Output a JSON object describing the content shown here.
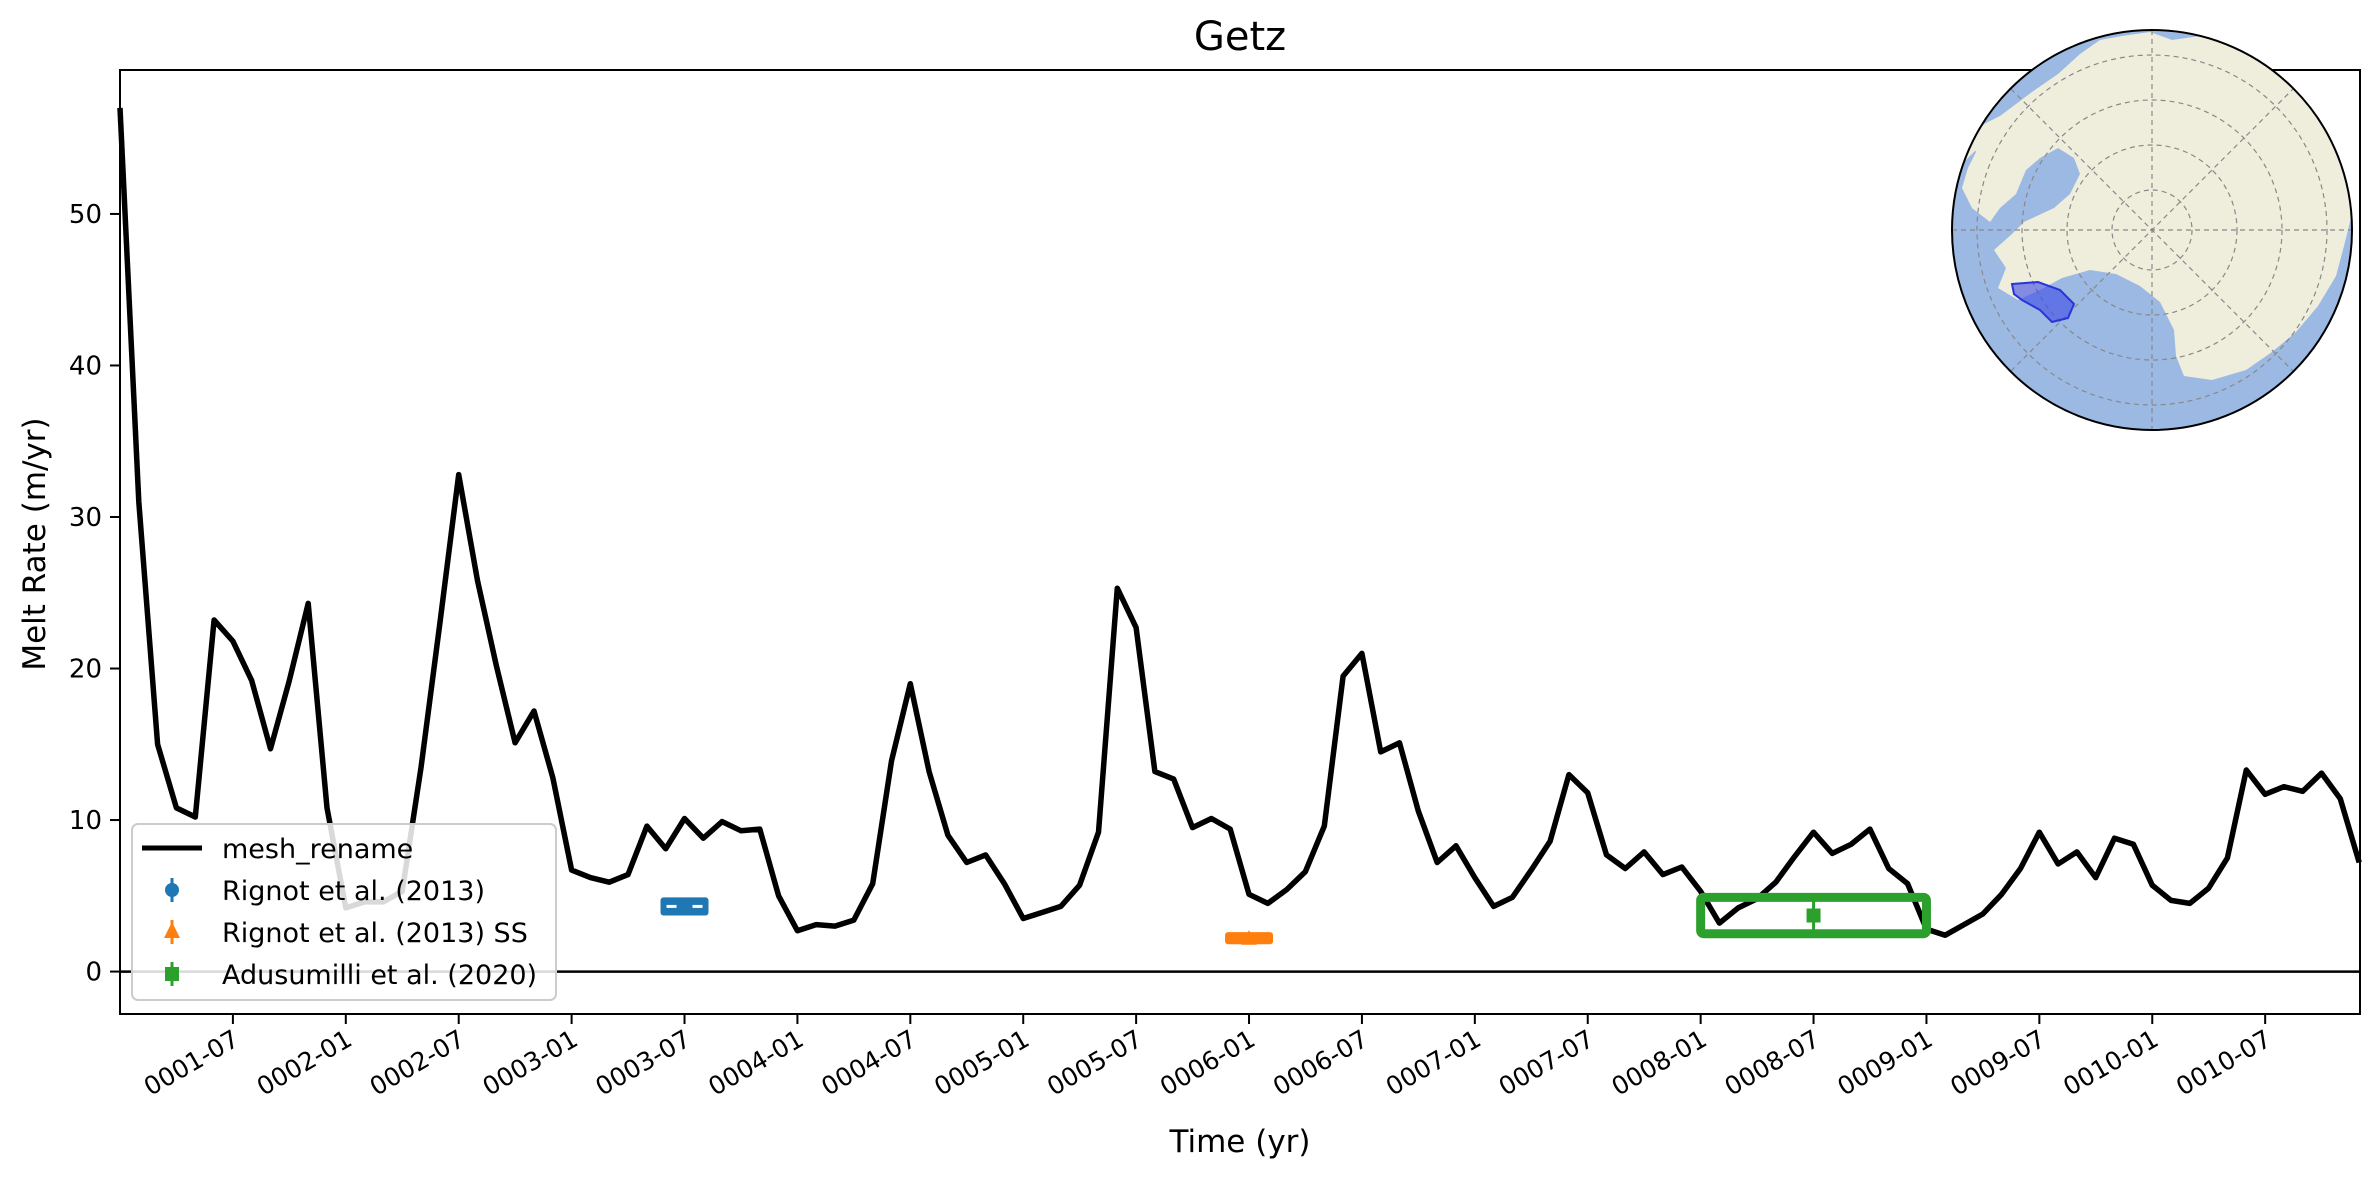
{
  "chart_data": {
    "type": "line",
    "title": "Getz",
    "xlabel": "Time (yr)",
    "ylabel": "Melt Rate (m/yr)",
    "xlim": [
      1.0,
      10.92
    ],
    "ylim": [
      -2.8,
      59.5
    ],
    "yticks": [
      0,
      10,
      20,
      30,
      40,
      50
    ],
    "xticks": [
      {
        "x": 1.5,
        "label": "0001-07"
      },
      {
        "x": 2.0,
        "label": "0002-01"
      },
      {
        "x": 2.5,
        "label": "0002-07"
      },
      {
        "x": 3.0,
        "label": "0003-01"
      },
      {
        "x": 3.5,
        "label": "0003-07"
      },
      {
        "x": 4.0,
        "label": "0004-01"
      },
      {
        "x": 4.5,
        "label": "0004-07"
      },
      {
        "x": 5.0,
        "label": "0005-01"
      },
      {
        "x": 5.5,
        "label": "0005-07"
      },
      {
        "x": 6.0,
        "label": "0006-01"
      },
      {
        "x": 6.5,
        "label": "0006-07"
      },
      {
        "x": 7.0,
        "label": "0007-01"
      },
      {
        "x": 7.5,
        "label": "0007-07"
      },
      {
        "x": 8.0,
        "label": "0008-01"
      },
      {
        "x": 8.5,
        "label": "0008-07"
      },
      {
        "x": 9.0,
        "label": "0009-01"
      },
      {
        "x": 9.5,
        "label": "0009-07"
      },
      {
        "x": 10.0,
        "label": "0010-01"
      },
      {
        "x": 10.5,
        "label": "0010-07"
      }
    ],
    "series": [
      {
        "name": "mesh_rename",
        "color": "#000000",
        "x_start": 1.0,
        "x_step": 0.08333,
        "values": [
          57,
          31,
          15,
          10.8,
          10.2,
          23.2,
          21.8,
          19.2,
          14.7,
          19.2,
          24.3,
          10.8,
          4.2,
          4.6,
          4.6,
          5.3,
          13.5,
          23.0,
          32.8,
          25.8,
          20.2,
          15.1,
          17.2,
          12.8,
          6.7,
          6.2,
          5.9,
          6.4,
          9.6,
          8.1,
          10.1,
          8.8,
          9.9,
          9.3,
          9.4,
          5.0,
          2.7,
          3.1,
          3.0,
          3.4,
          5.8,
          13.9,
          19.0,
          13.2,
          9.0,
          7.2,
          7.7,
          5.8,
          3.5,
          3.9,
          4.3,
          5.7,
          9.2,
          25.3,
          22.7,
          13.2,
          12.7,
          9.5,
          10.1,
          9.4,
          5.1,
          4.5,
          5.4,
          6.6,
          9.6,
          19.5,
          21.0,
          14.5,
          15.1,
          10.6,
          7.2,
          8.3,
          6.2,
          4.3,
          4.9,
          6.7,
          8.6,
          13.0,
          11.8,
          7.7,
          6.8,
          7.9,
          6.4,
          6.9,
          5.3,
          3.2,
          4.2,
          4.8,
          5.9,
          7.6,
          9.2,
          7.8,
          8.4,
          9.4,
          6.8,
          5.8,
          2.8,
          2.4,
          3.1,
          3.8,
          5.1,
          6.8,
          9.2,
          7.1,
          7.9,
          6.2,
          8.8,
          8.4,
          5.7,
          4.7,
          4.5,
          5.5,
          7.5,
          13.3,
          11.7,
          12.2,
          11.9,
          13.1,
          11.4,
          7.2
        ]
      }
    ],
    "observations": [
      {
        "name": "Rignot et al. (2013)",
        "color": "#1f77b4",
        "marker": "circle",
        "x": [
          3.5,
          3.5
        ],
        "y": 4.3,
        "err": 0.6
      },
      {
        "name": "Rignot et al. (2013) SS",
        "color": "#ff7f0e",
        "marker": "triangle",
        "x": [
          6.0,
          6.0
        ],
        "y": 2.2,
        "err": 0.4
      },
      {
        "name": "Adusumilli et al. (2020)",
        "color": "#2ca02c",
        "marker": "square",
        "x": [
          8.0,
          9.0
        ],
        "y": 3.7,
        "err": 1.2
      }
    ],
    "legend_position": "lower-left",
    "inset_map": {
      "region": "Antarctica",
      "highlight": "Getz",
      "ocean_color": "#9cb9e3",
      "land_color": "#efeedc",
      "highlight_color": "#3d49e6"
    }
  }
}
